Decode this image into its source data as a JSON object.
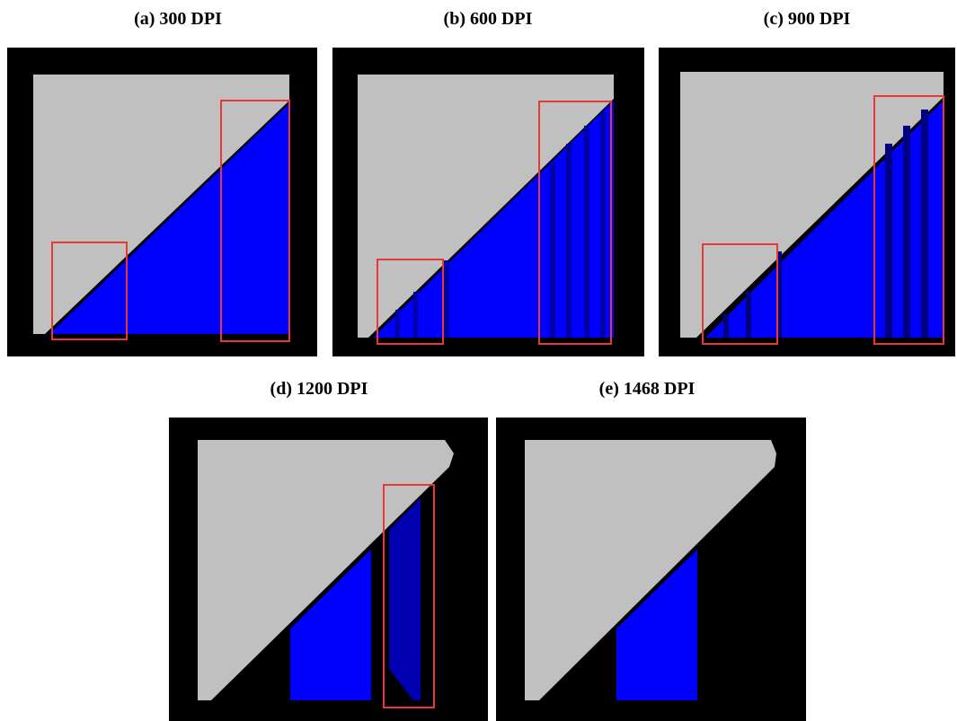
{
  "panels": [
    {
      "caption": "(a) 300 DPI"
    },
    {
      "caption": "(b) 600 DPI"
    },
    {
      "caption": "(c) 900 DPI"
    },
    {
      "caption": "(d) 1200 DPI"
    },
    {
      "caption": "(e) 1468 DPI"
    }
  ]
}
